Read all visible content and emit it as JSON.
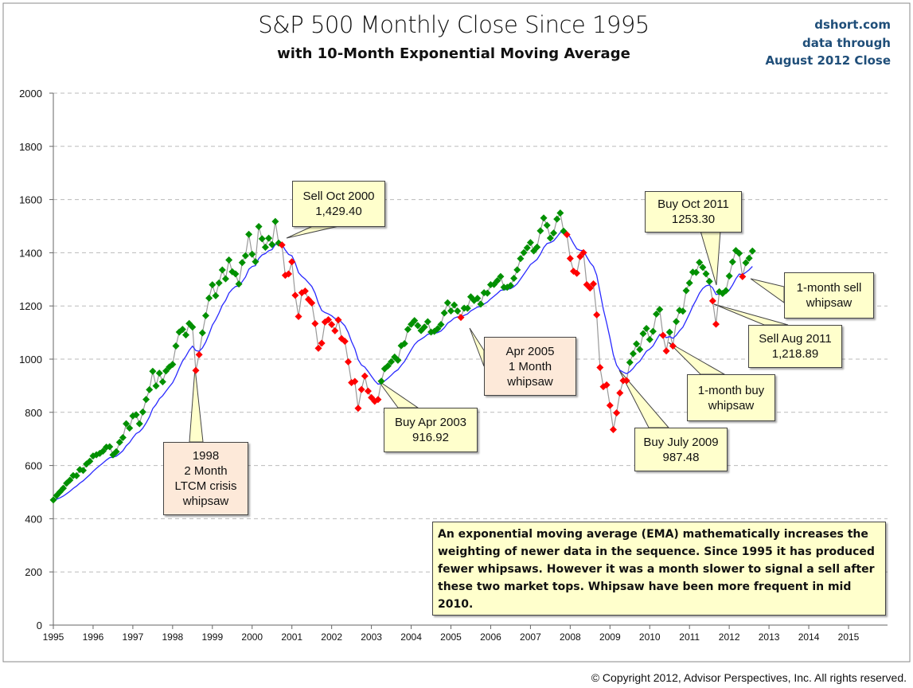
{
  "chart_data": {
    "type": "line",
    "title": "S&P 500 Monthly Close Since 1995",
    "subtitle": "with 10-Month Exponential Moving Average",
    "source_lines": [
      "dshort.com",
      "data through",
      "August 2012 Close"
    ],
    "xlabel": "",
    "ylabel": "",
    "xlim": [
      1995,
      2015
    ],
    "ylim": [
      0,
      2000
    ],
    "x_ticks": [
      "1995",
      "1996",
      "1997",
      "1998",
      "1999",
      "2000",
      "2001",
      "2002",
      "2003",
      "2004",
      "2005",
      "2006",
      "2007",
      "2008",
      "2009",
      "2010",
      "2011",
      "2012",
      "2013",
      "2014",
      "2015"
    ],
    "y_ticks": [
      "0",
      "200",
      "400",
      "600",
      "800",
      "1000",
      "1200",
      "1400",
      "1600",
      "1800",
      "2000"
    ],
    "grid": "horizontal dashed",
    "start": "1995-01",
    "ema_period_months": 10,
    "colors": {
      "above_ema": "#009000",
      "below_ema": "#ff0000",
      "ema_line": "#2a2aff",
      "close_line": "#999999"
    },
    "monthly_close": [
      470.42,
      487.39,
      500.71,
      514.71,
      533.4,
      544.75,
      562.06,
      561.88,
      584.41,
      581.5,
      605.37,
      615.93,
      636.02,
      640.43,
      645.5,
      654.17,
      669.12,
      670.63,
      639.95,
      651.99,
      687.33,
      705.27,
      757.02,
      740.74,
      786.16,
      790.82,
      757.12,
      801.34,
      848.28,
      885.14,
      954.29,
      899.47,
      947.28,
      914.62,
      955.4,
      970.43,
      980.28,
      1049.34,
      1101.75,
      1111.75,
      1090.82,
      1133.84,
      1120.67,
      957.28,
      1017.01,
      1098.67,
      1163.63,
      1229.23,
      1279.64,
      1238.33,
      1286.37,
      1335.18,
      1301.84,
      1372.71,
      1328.72,
      1320.41,
      1282.71,
      1362.93,
      1388.91,
      1469.25,
      1394.46,
      1366.42,
      1498.58,
      1452.43,
      1420.6,
      1454.6,
      1430.83,
      1517.68,
      1436.51,
      1429.4,
      1314.95,
      1320.28,
      1366.01,
      1239.94,
      1160.33,
      1249.46,
      1255.82,
      1224.42,
      1211.23,
      1133.58,
      1040.94,
      1059.78,
      1139.45,
      1148.08,
      1130.2,
      1106.73,
      1147.39,
      1076.92,
      1067.14,
      989.82,
      911.62,
      916.07,
      815.28,
      885.76,
      936.31,
      879.82,
      855.7,
      841.15,
      848.18,
      916.92,
      963.59,
      974.5,
      990.31,
      1008.01,
      995.97,
      1050.71,
      1058.2,
      1111.92,
      1131.13,
      1144.94,
      1126.21,
      1107.3,
      1120.68,
      1140.84,
      1101.72,
      1104.24,
      1114.58,
      1130.2,
      1173.82,
      1211.92,
      1181.27,
      1203.6,
      1180.59,
      1156.85,
      1191.5,
      1191.33,
      1234.18,
      1220.33,
      1228.81,
      1207.01,
      1249.48,
      1248.29,
      1280.08,
      1280.66,
      1294.83,
      1310.61,
      1270.09,
      1270.2,
      1276.66,
      1303.82,
      1335.85,
      1377.94,
      1400.63,
      1418.3,
      1438.24,
      1406.82,
      1420.86,
      1482.37,
      1530.62,
      1503.35,
      1455.27,
      1473.99,
      1526.75,
      1549.38,
      1481.14,
      1468.36,
      1378.55,
      1330.63,
      1322.7,
      1385.59,
      1400.38,
      1280.0,
      1267.38,
      1282.83,
      1166.36,
      968.75,
      896.24,
      903.25,
      825.88,
      735.09,
      797.87,
      872.81,
      919.14,
      919.32,
      987.48,
      1020.62,
      1057.08,
      1036.19,
      1095.63,
      1115.1,
      1073.87,
      1104.49,
      1169.43,
      1186.69,
      1089.41,
      1030.71,
      1101.6,
      1049.33,
      1141.2,
      1183.26,
      1180.55,
      1257.64,
      1286.12,
      1327.22,
      1325.83,
      1363.61,
      1345.2,
      1320.64,
      1292.28,
      1218.89,
      1131.42,
      1253.3,
      1246.96,
      1257.6,
      1312.41,
      1365.68,
      1408.47,
      1397.91,
      1310.33,
      1362.16,
      1379.32,
      1406.58
    ],
    "annotations": {
      "sell_2000": {
        "lines": [
          "Sell Oct 2000",
          "1,429.40"
        ]
      },
      "whipsaw_1998": {
        "lines": [
          "1998",
          "2 Month",
          "LTCM  crisis",
          "whipsaw"
        ]
      },
      "buy_2003": {
        "lines": [
          "Buy Apr 2003",
          "916.92"
        ]
      },
      "whipsaw_2005": {
        "lines": [
          "Apr 2005",
          "1 Month",
          "whipsaw"
        ]
      },
      "buy_2009": {
        "lines": [
          "Buy July 2009",
          "987.48"
        ]
      },
      "buy_2011": {
        "lines": [
          "Buy Oct 2011",
          "1253.30"
        ]
      },
      "sell_whipsaw": {
        "lines": [
          "1-month sell",
          "whipsaw"
        ]
      },
      "sell_2011": {
        "lines": [
          "Sell Aug 2011",
          "1,218.89"
        ]
      },
      "buy_whipsaw": {
        "lines": [
          "1-month buy",
          "whipsaw"
        ]
      },
      "note": "An exponential moving average (EMA) mathematically increases the weighting of newer data in the sequence. Since 1995 it has produced fewer whipsaws. However it was a month slower to signal a sell after these two market tops. Whipsaw have been more frequent in mid 2010."
    }
  },
  "footer": {
    "copyright": "© Copyright 2012, Advisor Perspectives, Inc. All rights reserved."
  }
}
